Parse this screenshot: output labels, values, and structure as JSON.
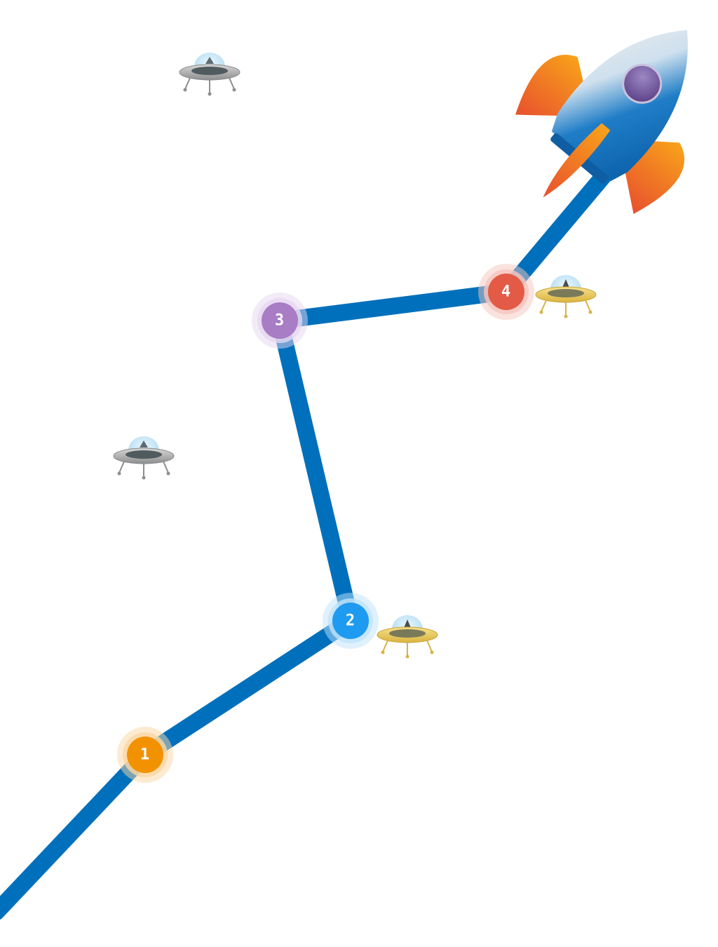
{
  "path": {
    "color": "#0070BC"
  },
  "levels": [
    {
      "label": "1",
      "color": "#F39200",
      "glow": "#FAD7A4"
    },
    {
      "label": "2",
      "color": "#1E9BF0",
      "glow": "#BFE3FB"
    },
    {
      "label": "3",
      "color": "#A97CC6",
      "glow": "#E6D7F0"
    },
    {
      "label": "4",
      "color": "#E35A46",
      "glow": "#F6C5BD"
    }
  ],
  "ufos": [
    {
      "name": "ufo-silver-top",
      "variant": "silver"
    },
    {
      "name": "ufo-silver-left",
      "variant": "silver"
    },
    {
      "name": "ufo-gold-level-2",
      "variant": "gold"
    },
    {
      "name": "ufo-gold-level-4",
      "variant": "gold"
    }
  ],
  "rocket": {
    "body_color": "#1572C2",
    "fin_color": "#F47A1F",
    "window_color": "#6B4B8F"
  }
}
